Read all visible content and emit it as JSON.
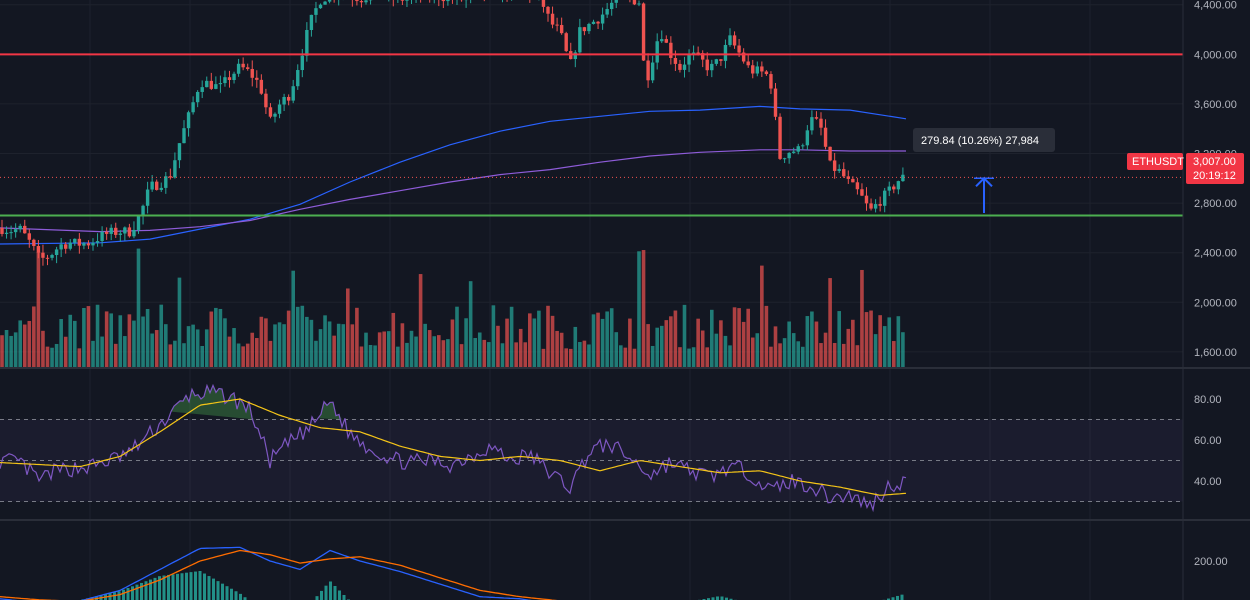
{
  "symbol": "ETHUSDT",
  "last_price": "3,007.00",
  "countdown": "20:19:12",
  "measure_label": "279.84 (10.26%) 27,984",
  "colors": {
    "bg": "#131722",
    "grid": "#1e222d",
    "up": "#26a69a",
    "down": "#ef5350",
    "resistance": "#f23645",
    "support": "#4caf50",
    "ma_blue": "#2962ff",
    "ma_purple": "#8e5cd9",
    "rsi": "#7e57c2",
    "rsi_ma": "#f5c518",
    "macd": "#2962ff",
    "signal": "#ff6d00",
    "price_tag": "#f23645",
    "measure_arrow": "#2962ff"
  },
  "chart_data": [
    {
      "type": "candlestick",
      "pane": "price",
      "y_ticks": [
        "4,400.00",
        "4,000.00",
        "3,600.00",
        "3,200.00",
        "2,800.00",
        "2,400.00",
        "2,000.00",
        "1,600.00"
      ],
      "ylim": [
        1470,
        4430
      ],
      "horizontal_lines": [
        {
          "name": "resistance",
          "value": 4000
        },
        {
          "name": "support",
          "value": 2700
        }
      ],
      "anchors": [
        [
          0,
          2600
        ],
        [
          10,
          2580
        ],
        [
          20,
          2590
        ],
        [
          30,
          2480
        ],
        [
          40,
          2340
        ],
        [
          50,
          2380
        ],
        [
          60,
          2460
        ],
        [
          70,
          2480
        ],
        [
          80,
          2470
        ],
        [
          90,
          2480
        ],
        [
          100,
          2530
        ],
        [
          110,
          2560
        ],
        [
          120,
          2570
        ],
        [
          130,
          2570
        ],
        [
          140,
          2700
        ],
        [
          150,
          2930
        ],
        [
          160,
          2960
        ],
        [
          170,
          3020
        ],
        [
          180,
          3300
        ],
        [
          190,
          3530
        ],
        [
          200,
          3780
        ],
        [
          210,
          3760
        ],
        [
          220,
          3730
        ],
        [
          230,
          3820
        ],
        [
          240,
          3900
        ],
        [
          250,
          3850
        ],
        [
          260,
          3750
        ],
        [
          270,
          3450
        ],
        [
          280,
          3600
        ],
        [
          290,
          3680
        ],
        [
          300,
          3960
        ],
        [
          310,
          4250
        ],
        [
          320,
          4440
        ],
        [
          340,
          4520
        ],
        [
          360,
          4450
        ],
        [
          380,
          4500
        ],
        [
          400,
          4440
        ],
        [
          420,
          4490
        ],
        [
          440,
          4470
        ],
        [
          460,
          4440
        ],
        [
          480,
          4480
        ],
        [
          500,
          4510
        ],
        [
          520,
          4500
        ],
        [
          540,
          4460
        ],
        [
          550,
          4260
        ],
        [
          560,
          4180
        ],
        [
          570,
          3900
        ],
        [
          580,
          4190
        ],
        [
          600,
          4300
        ],
        [
          620,
          4480
        ],
        [
          640,
          4420
        ],
        [
          645,
          3740
        ],
        [
          660,
          4200
        ],
        [
          670,
          4010
        ],
        [
          680,
          3890
        ],
        [
          690,
          4000
        ],
        [
          700,
          3960
        ],
        [
          710,
          3880
        ],
        [
          720,
          3960
        ],
        [
          730,
          4120
        ],
        [
          740,
          4000
        ],
        [
          750,
          3870
        ],
        [
          760,
          3860
        ],
        [
          770,
          3820
        ],
        [
          780,
          3170
        ],
        [
          790,
          3220
        ],
        [
          800,
          3230
        ],
        [
          810,
          3480
        ],
        [
          820,
          3430
        ],
        [
          830,
          3100
        ],
        [
          840,
          3050
        ],
        [
          850,
          2950
        ],
        [
          860,
          2870
        ],
        [
          870,
          2730
        ],
        [
          880,
          2820
        ],
        [
          890,
          2900
        ],
        [
          900,
          3000
        ],
        [
          906,
          3007
        ]
      ],
      "moving_averages": [
        {
          "color_key": "ma_blue",
          "points": [
            [
              0,
              2470
            ],
            [
              100,
              2480
            ],
            [
              150,
              2510
            ],
            [
              200,
              2590
            ],
            [
              250,
              2670
            ],
            [
              300,
              2790
            ],
            [
              350,
              2970
            ],
            [
              400,
              3130
            ],
            [
              450,
              3270
            ],
            [
              500,
              3380
            ],
            [
              550,
              3460
            ],
            [
              600,
              3500
            ],
            [
              650,
              3540
            ],
            [
              700,
              3550
            ],
            [
              760,
              3580
            ],
            [
              800,
              3560
            ],
            [
              850,
              3550
            ],
            [
              906,
              3480
            ]
          ]
        },
        {
          "color_key": "ma_purple",
          "points": [
            [
              0,
              2600
            ],
            [
              100,
              2570
            ],
            [
              150,
              2580
            ],
            [
              200,
              2610
            ],
            [
              250,
              2660
            ],
            [
              300,
              2750
            ],
            [
              350,
              2830
            ],
            [
              400,
              2900
            ],
            [
              450,
              2970
            ],
            [
              500,
              3030
            ],
            [
              550,
              3070
            ],
            [
              600,
              3130
            ],
            [
              650,
              3180
            ],
            [
              700,
              3210
            ],
            [
              760,
              3230
            ],
            [
              800,
              3230
            ],
            [
              850,
              3220
            ],
            [
              906,
              3220
            ]
          ]
        }
      ],
      "measurement": {
        "from_value": 2720,
        "to_value": 3000
      }
    },
    {
      "type": "bar",
      "pane": "volume",
      "seed_note": "volume bars colored per candle direction"
    },
    {
      "type": "line",
      "pane": "rsi",
      "y_ticks": [
        "80.00",
        "60.00",
        "40.00"
      ],
      "ylim": [
        25,
        90
      ],
      "levels": [
        70,
        50,
        30
      ],
      "rsi_anchors": [
        [
          0,
          50
        ],
        [
          20,
          49
        ],
        [
          40,
          40
        ],
        [
          50,
          44
        ],
        [
          70,
          46
        ],
        [
          90,
          47
        ],
        [
          110,
          50
        ],
        [
          130,
          54
        ],
        [
          150,
          63
        ],
        [
          170,
          72
        ],
        [
          190,
          82
        ],
        [
          210,
          83
        ],
        [
          230,
          81
        ],
        [
          250,
          75
        ],
        [
          270,
          50
        ],
        [
          290,
          59
        ],
        [
          310,
          66
        ],
        [
          330,
          79
        ],
        [
          350,
          63
        ],
        [
          370,
          56
        ],
        [
          390,
          51
        ],
        [
          410,
          49
        ],
        [
          430,
          50
        ],
        [
          450,
          48
        ],
        [
          470,
          52
        ],
        [
          490,
          57
        ],
        [
          510,
          50
        ],
        [
          530,
          53
        ],
        [
          550,
          44
        ],
        [
          570,
          37
        ],
        [
          590,
          55
        ],
        [
          610,
          58
        ],
        [
          630,
          51
        ],
        [
          650,
          43
        ],
        [
          670,
          49
        ],
        [
          690,
          45
        ],
        [
          710,
          42
        ],
        [
          730,
          47
        ],
        [
          750,
          44
        ],
        [
          770,
          35
        ],
        [
          790,
          40
        ],
        [
          810,
          38
        ],
        [
          830,
          32
        ],
        [
          850,
          33
        ],
        [
          870,
          28
        ],
        [
          890,
          38
        ],
        [
          906,
          40
        ]
      ],
      "rsi_ma_anchors": [
        [
          0,
          49
        ],
        [
          40,
          48
        ],
        [
          80,
          47
        ],
        [
          120,
          52
        ],
        [
          160,
          64
        ],
        [
          200,
          77
        ],
        [
          240,
          80
        ],
        [
          280,
          72
        ],
        [
          320,
          66
        ],
        [
          360,
          64
        ],
        [
          400,
          57
        ],
        [
          440,
          52
        ],
        [
          480,
          50
        ],
        [
          520,
          52
        ],
        [
          560,
          50
        ],
        [
          600,
          45
        ],
        [
          640,
          50
        ],
        [
          680,
          47
        ],
        [
          720,
          44
        ],
        [
          760,
          45
        ],
        [
          800,
          40
        ],
        [
          840,
          37
        ],
        [
          880,
          33
        ],
        [
          906,
          34
        ]
      ]
    },
    {
      "type": "line",
      "pane": "macd",
      "y_ticks": [
        "200.00"
      ],
      "ylim": [
        -60,
        310
      ],
      "macd_anchors": [
        [
          0,
          20
        ],
        [
          40,
          0
        ],
        [
          80,
          10
        ],
        [
          120,
          60
        ],
        [
          160,
          160
        ],
        [
          200,
          260
        ],
        [
          240,
          265
        ],
        [
          270,
          200
        ],
        [
          300,
          160
        ],
        [
          330,
          250
        ],
        [
          360,
          200
        ],
        [
          400,
          150
        ],
        [
          440,
          90
        ],
        [
          480,
          30
        ],
        [
          520,
          20
        ],
        [
          560,
          -10
        ],
        [
          600,
          -20
        ],
        [
          640,
          -5
        ],
        [
          680,
          -10
        ],
        [
          720,
          5
        ],
        [
          760,
          -20
        ],
        [
          800,
          -40
        ],
        [
          840,
          -50
        ],
        [
          880,
          -40
        ],
        [
          906,
          -20
        ]
      ],
      "signal_anchors": [
        [
          0,
          30
        ],
        [
          40,
          15
        ],
        [
          80,
          8
        ],
        [
          120,
          40
        ],
        [
          160,
          110
        ],
        [
          200,
          200
        ],
        [
          240,
          250
        ],
        [
          270,
          230
        ],
        [
          300,
          190
        ],
        [
          330,
          210
        ],
        [
          360,
          220
        ],
        [
          400,
          180
        ],
        [
          440,
          120
        ],
        [
          480,
          60
        ],
        [
          520,
          30
        ],
        [
          560,
          10
        ],
        [
          600,
          -5
        ],
        [
          640,
          -5
        ],
        [
          680,
          -5
        ],
        [
          720,
          -5
        ],
        [
          760,
          -10
        ],
        [
          800,
          -30
        ],
        [
          840,
          -40
        ],
        [
          880,
          -40
        ],
        [
          906,
          -35
        ]
      ]
    }
  ]
}
